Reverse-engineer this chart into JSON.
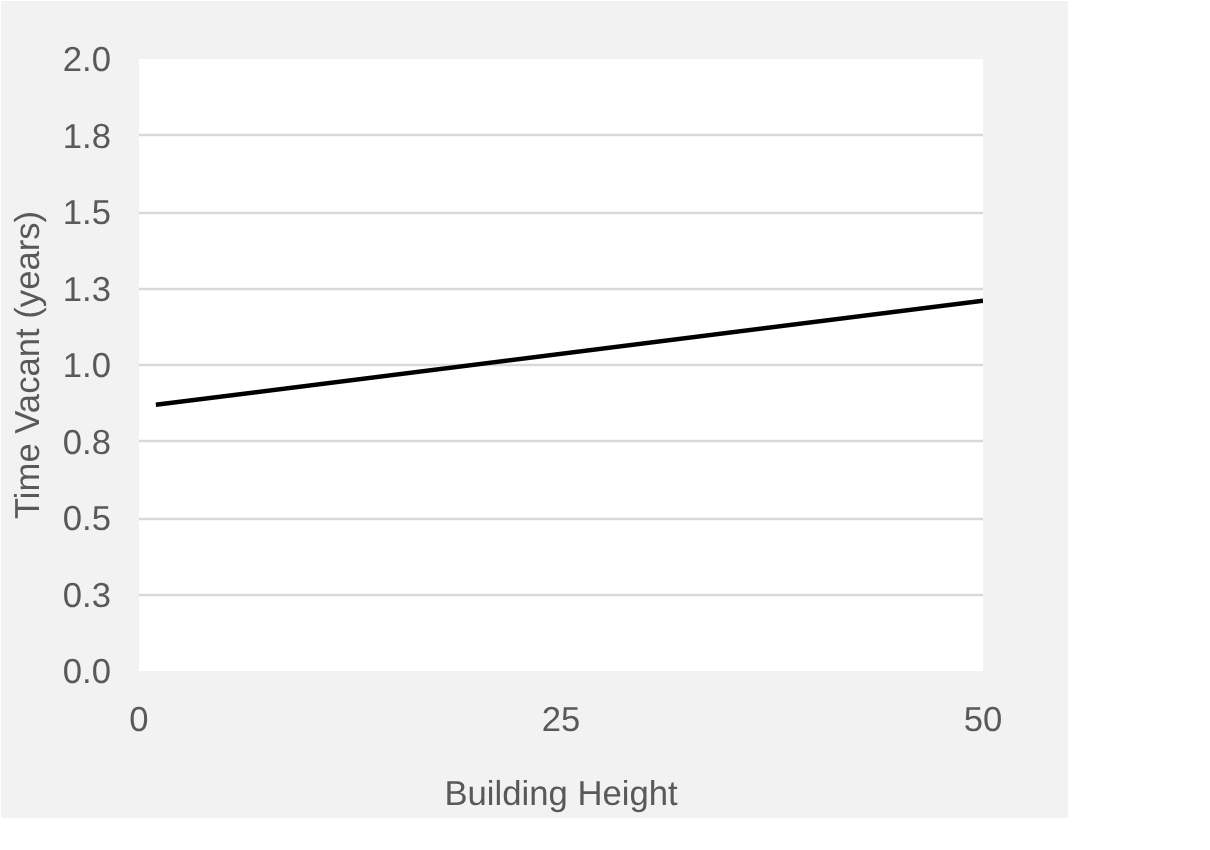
{
  "chart_data": {
    "type": "line",
    "xlabel": "Building Height",
    "ylabel": "Time Vacant (years)",
    "x": [
      1,
      50
    ],
    "series": [
      {
        "color": "#000000",
        "values": [
          0.87,
          1.21
        ]
      }
    ],
    "xlim": [
      0,
      50
    ],
    "xticks": [
      0,
      25,
      50
    ],
    "ylim": [
      0,
      2
    ],
    "yticks": [
      {
        "value": 0,
        "label": "0.0"
      },
      {
        "value": 0.25,
        "label": "0.3"
      },
      0.5,
      {
        "value": 0.75,
        "label": "0.8"
      },
      {
        "value": 1,
        "label": "1.0"
      },
      {
        "value": 1.25,
        "label": "1.3"
      },
      1.5,
      {
        "value": 1.75,
        "label": "1.8"
      },
      {
        "value": 2,
        "label": "2.0"
      }
    ],
    "grid": "y",
    "marker": "none",
    "line_style": "solid"
  }
}
